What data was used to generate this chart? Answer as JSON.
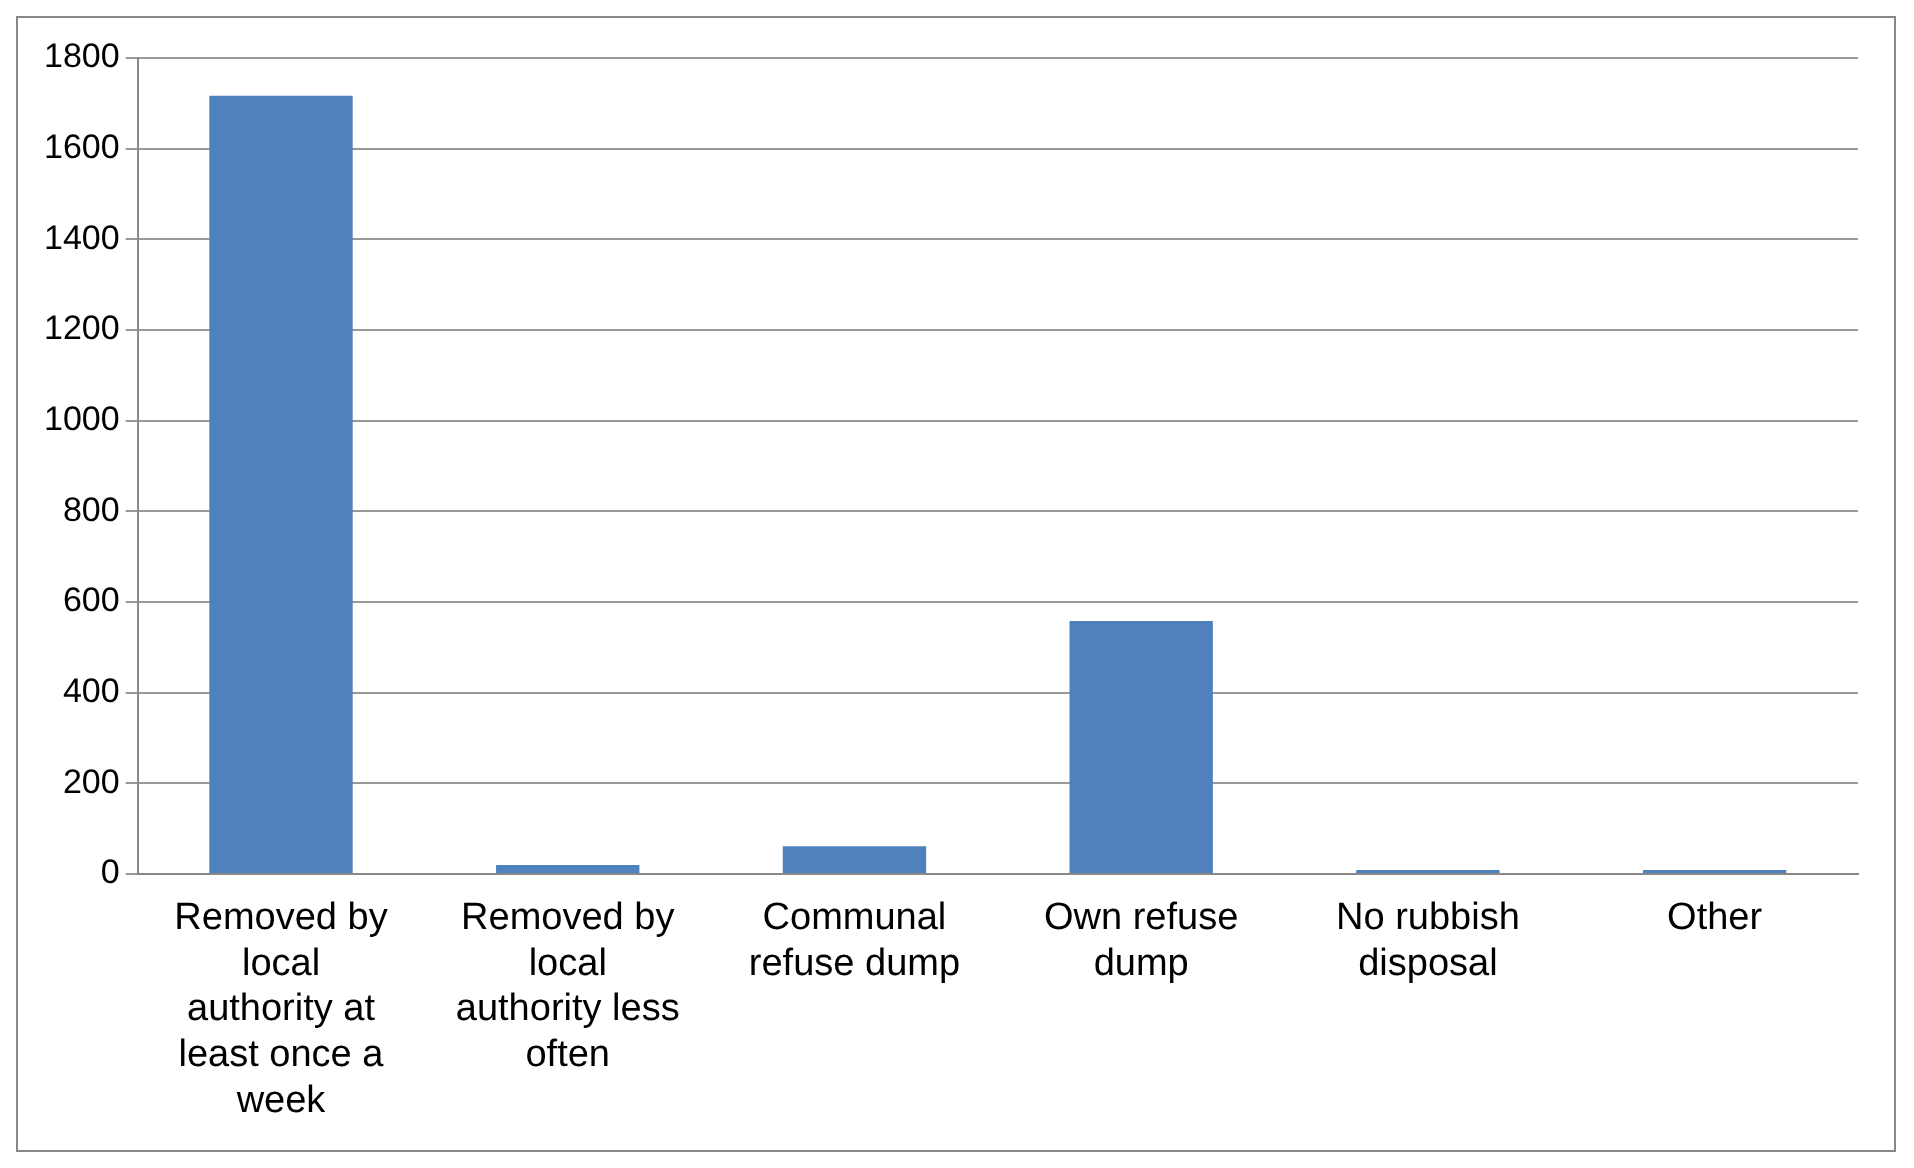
{
  "chart_data": {
    "type": "bar",
    "categories": [
      "Removed by local authority at least once a week",
      "Removed by local authority less often",
      "Communal refuse dump",
      "Own refuse dump",
      "No rubbish disposal",
      "Other"
    ],
    "values": [
      1717,
      20,
      61,
      558,
      9,
      9
    ],
    "color": "#4f81bd",
    "ylim": [
      0,
      1800
    ],
    "yticks": [
      0,
      200,
      400,
      600,
      800,
      1000,
      1200,
      1400,
      1600,
      1800
    ],
    "grid": "y"
  }
}
